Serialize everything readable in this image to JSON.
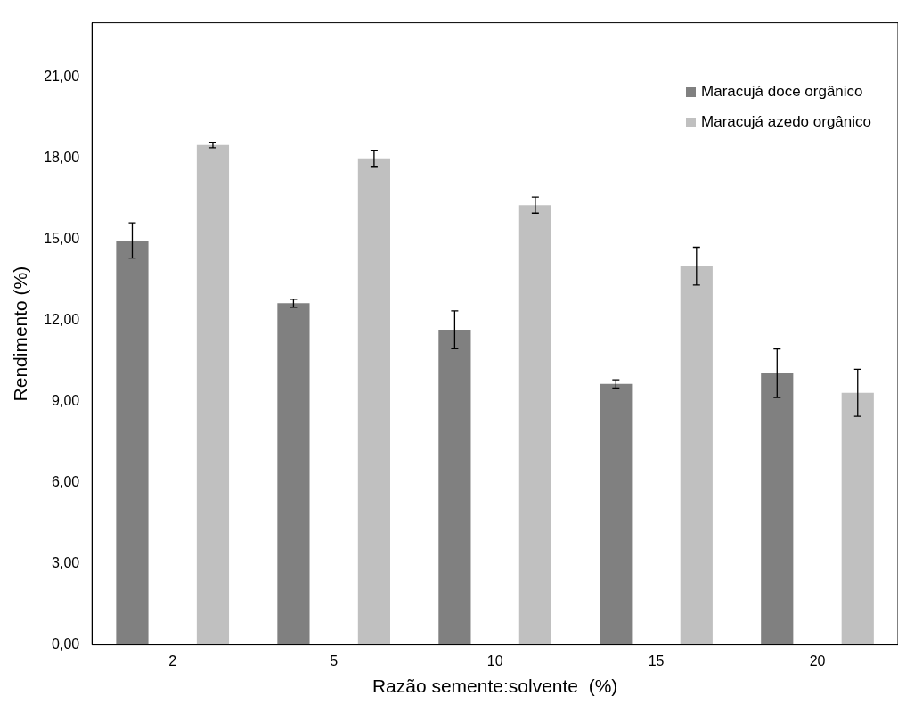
{
  "chart_data": {
    "type": "bar",
    "xlabel": "Razão semente:solvente  (%)",
    "ylabel": "Rendimento (%)",
    "categories": [
      "2",
      "5",
      "10",
      "15",
      "20"
    ],
    "series": [
      {
        "name": "Maracujá doce orgânico",
        "color": "#808080",
        "values": [
          14.95,
          12.63,
          11.65,
          9.65,
          10.04
        ],
        "errors": [
          0.65,
          0.15,
          0.7,
          0.15,
          0.9
        ]
      },
      {
        "name": "Maracujá azedo orgânico",
        "color": "#c0c0c0",
        "values": [
          18.48,
          17.99,
          16.26,
          14.0,
          9.32
        ],
        "errors": [
          0.1,
          0.3,
          0.3,
          0.7,
          0.87
        ]
      }
    ],
    "ylim": [
      0,
      23
    ],
    "yticks": [
      {
        "value": 0,
        "label": "0,00"
      },
      {
        "value": 3,
        "label": "3,00"
      },
      {
        "value": 6,
        "label": "6,00"
      },
      {
        "value": 9,
        "label": "9,00"
      },
      {
        "value": 12,
        "label": "12,00"
      },
      {
        "value": 15,
        "label": "15,00"
      },
      {
        "value": 18,
        "label": "18,00"
      },
      {
        "value": 21,
        "label": "21,00"
      }
    ],
    "grid": false,
    "legend": "top right"
  }
}
